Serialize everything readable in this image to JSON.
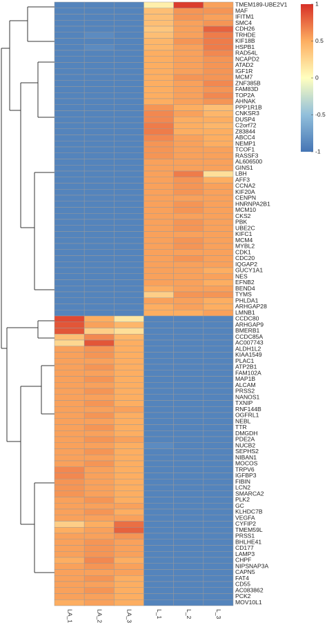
{
  "chart_data": {
    "type": "heatmap",
    "columns": [
      "LA_1",
      "LA_2",
      "LA_3",
      "L_1",
      "L_2",
      "L_3"
    ],
    "rows": [
      "TMEM189-UBE2V1",
      "MAF",
      "IFITM1",
      "SMC4",
      "CDH26",
      "TRHDE",
      "KIF18B",
      "HSPB1",
      "RAD54L",
      "NCAPD2",
      "ATAD2",
      "IGF1R",
      "MCM7",
      "ZNF385B",
      "FAM83D",
      "TOP2A",
      "AHNAK",
      "PPP1R1B",
      "CNKSR3",
      "DUSP4",
      "C2orf72",
      "Z83844",
      "ABCC4",
      "NEMP1",
      "TCOF1",
      "RASSF3",
      "AL606500",
      "GINS1",
      "LBH",
      "AFF3",
      "CCNA2",
      "KIF20A",
      "CENPN",
      "HNRNPA2B1",
      "MCM10",
      "CKS2",
      "PBK",
      "UBE2C",
      "KIFC1",
      "MCM4",
      "MYBL2",
      "CDK1",
      "CDC20",
      "IQGAP2",
      "GUCY1A1",
      "NES",
      "EFNB2",
      "BEND4",
      "TYMS",
      "PHLDA1",
      "ARHGAP28",
      "LMNB1",
      "CCDC80",
      "ARHGAP9",
      "BMERB1",
      "CCDC85A",
      "AC007743",
      "ALDH1L2",
      "KIAA1549",
      "PLAC1",
      "ATP2B1",
      "FAM102A",
      "MAP1B",
      "ALCAM",
      "PRSS2",
      "NANOS1",
      "TXNIP",
      "RNF144B",
      "OGFRL1",
      "NEBL",
      "TTR",
      "DMGDH",
      "PDE2A",
      "NUCB2",
      "SEPHS2",
      "NIBAN1",
      "MOCOS",
      "TRPV6",
      "IGFBP3",
      "FIBIN",
      "LCN2",
      "SMARCA2",
      "PLK2",
      "GC",
      "KLHDC7B",
      "VEGFA",
      "CYFIP2",
      "TMEM59L",
      "PRSS1",
      "BHLHE41",
      "CD177",
      "LAMP3",
      "CHPF",
      "NIPSNAP3A",
      "CAPN5",
      "FAT4",
      "CD55",
      "AC083862",
      "PCK2",
      "MOV10L1"
    ],
    "values": [
      [
        -0.9,
        -0.9,
        -0.9,
        0.1,
        0.95,
        0.55
      ],
      [
        -0.9,
        -0.9,
        -0.9,
        0.4,
        0.6,
        0.6
      ],
      [
        -0.9,
        -0.9,
        -0.9,
        0.4,
        0.6,
        0.55
      ],
      [
        -0.9,
        -0.9,
        -0.9,
        0.4,
        0.55,
        0.6
      ],
      [
        -0.9,
        -0.9,
        -0.9,
        0.35,
        0.55,
        0.8
      ],
      [
        -0.9,
        -0.85,
        -0.9,
        0.4,
        0.55,
        0.7
      ],
      [
        -0.9,
        -0.9,
        -0.9,
        0.45,
        0.6,
        0.7
      ],
      [
        -0.9,
        -0.85,
        -0.9,
        0.45,
        0.55,
        0.7
      ],
      [
        -0.9,
        -0.9,
        -0.9,
        0.5,
        0.55,
        0.65
      ],
      [
        -0.9,
        -0.9,
        -0.9,
        0.5,
        0.55,
        0.6
      ],
      [
        -0.9,
        -0.9,
        -0.9,
        0.5,
        0.55,
        0.6
      ],
      [
        -0.9,
        -0.9,
        -0.9,
        0.5,
        0.55,
        0.6
      ],
      [
        -0.9,
        -0.9,
        -0.9,
        0.5,
        0.6,
        0.6
      ],
      [
        -0.9,
        -0.9,
        -0.9,
        0.5,
        0.55,
        0.65
      ],
      [
        -0.9,
        -0.9,
        -0.9,
        0.5,
        0.55,
        0.6
      ],
      [
        -0.9,
        -0.9,
        -0.9,
        0.5,
        0.55,
        0.65
      ],
      [
        -0.9,
        -0.9,
        -0.9,
        0.5,
        0.55,
        0.6
      ],
      [
        -0.9,
        -0.9,
        -0.9,
        0.6,
        0.5,
        0.4
      ],
      [
        -0.9,
        -0.9,
        -0.9,
        0.65,
        0.55,
        0.45
      ],
      [
        -0.9,
        -0.9,
        -0.9,
        0.65,
        0.5,
        0.5
      ],
      [
        -0.9,
        -0.9,
        -0.9,
        0.7,
        0.5,
        0.45
      ],
      [
        -0.9,
        -0.9,
        -0.9,
        0.7,
        0.5,
        0.5
      ],
      [
        -0.9,
        -0.9,
        -0.9,
        0.65,
        0.55,
        0.5
      ],
      [
        -0.9,
        -0.9,
        -0.9,
        0.6,
        0.55,
        0.5
      ],
      [
        -0.9,
        -0.9,
        -0.9,
        0.6,
        0.55,
        0.55
      ],
      [
        -0.9,
        -0.9,
        -0.9,
        0.6,
        0.55,
        0.55
      ],
      [
        -0.9,
        -0.9,
        -0.9,
        0.55,
        0.55,
        0.55
      ],
      [
        -0.9,
        -0.9,
        -0.9,
        0.55,
        0.55,
        0.55
      ],
      [
        -0.9,
        -0.9,
        -0.9,
        0.55,
        0.7,
        0.2
      ],
      [
        -0.9,
        -0.9,
        -0.9,
        0.55,
        0.6,
        0.5
      ],
      [
        -0.9,
        -0.9,
        -0.9,
        0.55,
        0.6,
        0.55
      ],
      [
        -0.9,
        -0.9,
        -0.9,
        0.55,
        0.6,
        0.55
      ],
      [
        -0.9,
        -0.9,
        -0.9,
        0.55,
        0.55,
        0.55
      ],
      [
        -0.9,
        -0.9,
        -0.9,
        0.55,
        0.6,
        0.55
      ],
      [
        -0.9,
        -0.9,
        -0.9,
        0.55,
        0.6,
        0.55
      ],
      [
        -0.9,
        -0.9,
        -0.9,
        0.55,
        0.55,
        0.55
      ],
      [
        -0.9,
        -0.9,
        -0.9,
        0.55,
        0.6,
        0.55
      ],
      [
        -0.9,
        -0.9,
        -0.9,
        0.55,
        0.6,
        0.55
      ],
      [
        -0.9,
        -0.9,
        -0.9,
        0.55,
        0.55,
        0.55
      ],
      [
        -0.9,
        -0.9,
        -0.9,
        0.55,
        0.6,
        0.55
      ],
      [
        -0.9,
        -0.9,
        -0.9,
        0.55,
        0.6,
        0.55
      ],
      [
        -0.9,
        -0.9,
        -0.9,
        0.55,
        0.55,
        0.55
      ],
      [
        -0.9,
        -0.9,
        -0.9,
        0.55,
        0.6,
        0.55
      ],
      [
        -0.9,
        -0.9,
        -0.9,
        0.55,
        0.55,
        0.55
      ],
      [
        -0.9,
        -0.9,
        -0.9,
        0.55,
        0.55,
        0.5
      ],
      [
        -0.9,
        -0.9,
        -0.9,
        0.55,
        0.55,
        0.55
      ],
      [
        -0.9,
        -0.9,
        -0.9,
        0.55,
        0.55,
        0.5
      ],
      [
        -0.9,
        -0.9,
        -0.9,
        0.5,
        0.55,
        0.55
      ],
      [
        -0.9,
        -0.9,
        -0.9,
        0.3,
        0.6,
        0.6
      ],
      [
        -0.9,
        -0.9,
        -0.9,
        0.55,
        0.55,
        0.5
      ],
      [
        -0.9,
        -0.9,
        -0.9,
        0.5,
        0.55,
        0.5
      ],
      [
        -0.9,
        -0.9,
        -0.9,
        0.5,
        0.5,
        0.55
      ],
      [
        0.9,
        0.5,
        0.15,
        -0.9,
        -0.9,
        -0.9
      ],
      [
        0.85,
        0.55,
        0.45,
        -0.9,
        -0.9,
        -0.9
      ],
      [
        0.85,
        0.3,
        0.2,
        -0.9,
        -0.9,
        -0.9
      ],
      [
        0.4,
        0.65,
        0.45,
        -0.9,
        -0.9,
        -0.9
      ],
      [
        0.25,
        0.85,
        0.5,
        -0.9,
        -0.9,
        -0.9
      ],
      [
        0.55,
        0.6,
        0.5,
        -0.9,
        -0.9,
        -0.9
      ],
      [
        0.55,
        0.6,
        0.5,
        -0.9,
        -0.9,
        -0.9
      ],
      [
        0.55,
        0.55,
        0.5,
        -0.9,
        -0.9,
        -0.9
      ],
      [
        0.55,
        0.6,
        0.5,
        -0.9,
        -0.9,
        -0.9
      ],
      [
        0.55,
        0.55,
        0.5,
        -0.9,
        -0.9,
        -0.9
      ],
      [
        0.55,
        0.6,
        0.5,
        -0.9,
        -0.9,
        -0.9
      ],
      [
        0.55,
        0.55,
        0.5,
        -0.9,
        -0.9,
        -0.9
      ],
      [
        0.55,
        0.6,
        0.5,
        -0.9,
        -0.9,
        -0.9
      ],
      [
        0.55,
        0.55,
        0.5,
        -0.9,
        -0.9,
        -0.9
      ],
      [
        0.55,
        0.6,
        0.5,
        -0.9,
        -0.9,
        -0.9
      ],
      [
        0.55,
        0.55,
        0.55,
        -0.9,
        -0.9,
        -0.9
      ],
      [
        0.55,
        0.6,
        0.5,
        -0.9,
        -0.9,
        -0.9
      ],
      [
        0.55,
        0.55,
        0.5,
        -0.9,
        -0.9,
        -0.9
      ],
      [
        0.55,
        0.6,
        0.5,
        -0.9,
        -0.9,
        -0.9
      ],
      [
        0.55,
        0.55,
        0.5,
        -0.9,
        -0.9,
        -0.9
      ],
      [
        0.55,
        0.6,
        0.55,
        -0.9,
        -0.9,
        -0.9
      ],
      [
        0.55,
        0.55,
        0.5,
        -0.85,
        -0.9,
        -0.9
      ],
      [
        0.55,
        0.6,
        0.5,
        -0.9,
        -0.9,
        -0.9
      ],
      [
        0.55,
        0.55,
        0.5,
        -0.9,
        -0.9,
        -0.9
      ],
      [
        0.55,
        0.6,
        0.5,
        -0.9,
        -0.9,
        -0.9
      ],
      [
        0.65,
        0.55,
        0.5,
        -0.9,
        -0.9,
        -0.9
      ],
      [
        0.65,
        0.55,
        0.5,
        -0.9,
        -0.9,
        -0.9
      ],
      [
        0.6,
        0.55,
        0.5,
        -0.9,
        -0.9,
        -0.9
      ],
      [
        0.6,
        0.55,
        0.5,
        -0.9,
        -0.9,
        -0.9
      ],
      [
        0.6,
        0.55,
        0.5,
        -0.9,
        -0.9,
        -0.9
      ],
      [
        0.55,
        0.6,
        0.5,
        -0.9,
        -0.9,
        -0.9
      ],
      [
        0.55,
        0.55,
        0.55,
        -0.9,
        -0.9,
        -0.9
      ],
      [
        0.55,
        0.6,
        0.5,
        -0.9,
        -0.9,
        -0.9
      ],
      [
        0.55,
        0.55,
        0.55,
        -0.9,
        -0.9,
        -0.9
      ],
      [
        0.3,
        0.5,
        0.75,
        -0.9,
        -0.9,
        -0.9
      ],
      [
        0.5,
        0.55,
        0.8,
        -0.9,
        -0.9,
        -0.9
      ],
      [
        0.55,
        0.55,
        0.6,
        -0.9,
        -0.9,
        -0.9
      ],
      [
        0.55,
        0.6,
        0.55,
        -0.9,
        -0.9,
        -0.9
      ],
      [
        0.55,
        0.6,
        0.55,
        -0.9,
        -0.9,
        -0.9
      ],
      [
        0.55,
        0.6,
        0.55,
        -0.9,
        -0.9,
        -0.9
      ],
      [
        0.5,
        0.65,
        0.5,
        -0.9,
        -0.9,
        -0.9
      ],
      [
        0.55,
        0.6,
        0.55,
        -0.9,
        -0.9,
        -0.9
      ],
      [
        0.55,
        0.55,
        0.55,
        -0.9,
        -0.9,
        -0.9
      ],
      [
        0.55,
        0.6,
        0.5,
        -0.9,
        -0.9,
        -0.9
      ],
      [
        0.55,
        0.55,
        0.5,
        -0.9,
        -0.9,
        -0.9
      ],
      [
        0.55,
        0.6,
        0.5,
        -0.9,
        -0.9,
        -0.9
      ],
      [
        0.55,
        0.55,
        0.5,
        -0.9,
        -0.9,
        -0.9
      ],
      [
        0.5,
        0.55,
        0.5,
        -0.9,
        -0.9,
        -0.9
      ]
    ],
    "zlim": [
      -1,
      1
    ],
    "zticks": [
      -1,
      -0.5,
      0,
      0.5,
      1
    ],
    "colorscale": [
      "#4575b4",
      "#91bfdb",
      "#ffffbf",
      "#fdae61",
      "#d73027"
    ]
  }
}
